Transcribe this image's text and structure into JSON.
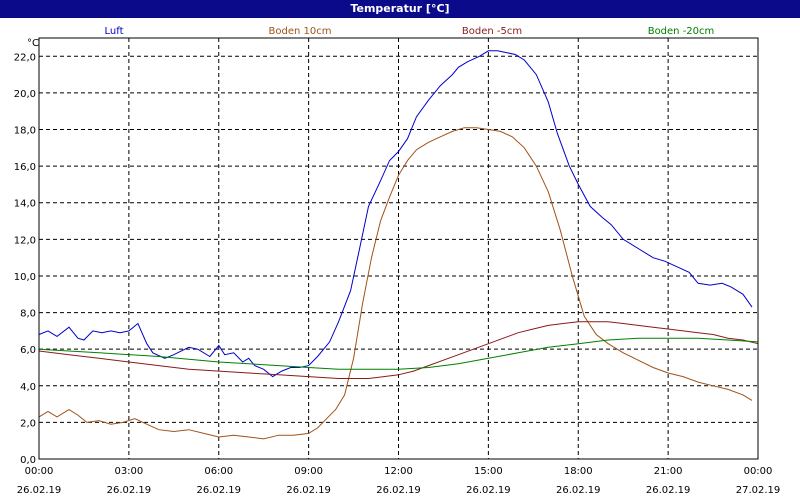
{
  "window": {
    "title": "Temperatur [°C]"
  },
  "chart_data": {
    "type": "line",
    "title": "Temperatur [°C]",
    "ylabel": "°C",
    "ylim": [
      0,
      23
    ],
    "xlim_hours": [
      0,
      24
    ],
    "grid": true,
    "legend_placement": "top",
    "x_ticks": [
      {
        "time": "00:00",
        "date": "26.02.19"
      },
      {
        "time": "03:00",
        "date": "26.02.19"
      },
      {
        "time": "06:00",
        "date": "26.02.19"
      },
      {
        "time": "09:00",
        "date": "26.02.19"
      },
      {
        "time": "12:00",
        "date": "26.02.19"
      },
      {
        "time": "15:00",
        "date": "26.02.19"
      },
      {
        "time": "18:00",
        "date": "26.02.19"
      },
      {
        "time": "21:00",
        "date": "26.02.19"
      },
      {
        "time": "00:00",
        "date": "27.02.19"
      }
    ],
    "y_ticks": [
      "0,0",
      "2,0",
      "4,0",
      "6,0",
      "8,0",
      "10,0",
      "12,0",
      "14,0",
      "16,0",
      "18,0",
      "20,0",
      "22,0"
    ],
    "series": [
      {
        "name": "Luft",
        "color": "#0000cc",
        "x_hours": [
          0,
          0.3,
          0.6,
          1.0,
          1.3,
          1.5,
          1.8,
          2.1,
          2.4,
          2.7,
          3.0,
          3.3,
          3.6,
          3.8,
          4.2,
          4.5,
          5.0,
          5.3,
          5.7,
          6.0,
          6.2,
          6.5,
          6.8,
          7.0,
          7.2,
          7.5,
          7.8,
          8.1,
          8.4,
          8.7,
          9.0,
          9.3,
          9.7,
          10.0,
          10.4,
          10.7,
          11.0,
          11.4,
          11.7,
          12.0,
          12.3,
          12.6,
          13.0,
          13.4,
          13.8,
          14.0,
          14.3,
          14.7,
          15.0,
          15.3,
          15.6,
          15.9,
          16.2,
          16.6,
          17.0,
          17.3,
          17.7,
          18.0,
          18.4,
          18.8,
          19.1,
          19.5,
          20.0,
          20.5,
          20.9,
          21.3,
          21.7,
          22.0,
          22.4,
          22.8,
          23.1,
          23.5,
          23.8
        ],
        "values": [
          6.8,
          7.0,
          6.7,
          7.2,
          6.6,
          6.5,
          7.0,
          6.9,
          7.0,
          6.9,
          7.0,
          7.4,
          6.3,
          5.8,
          5.5,
          5.7,
          6.1,
          6.0,
          5.6,
          6.2,
          5.7,
          5.8,
          5.3,
          5.5,
          5.1,
          4.9,
          4.5,
          4.8,
          5.0,
          5.0,
          5.1,
          5.6,
          6.4,
          7.5,
          9.2,
          11.5,
          13.8,
          15.2,
          16.3,
          16.8,
          17.5,
          18.7,
          19.6,
          20.4,
          21.0,
          21.4,
          21.7,
          22.0,
          22.3,
          22.3,
          22.2,
          22.1,
          21.8,
          21.0,
          19.5,
          17.8,
          16.0,
          15.0,
          13.8,
          13.2,
          12.8,
          12.0,
          11.5,
          11.0,
          10.8,
          10.5,
          10.2,
          9.6,
          9.5,
          9.6,
          9.4,
          9.0,
          8.3
        ]
      },
      {
        "name": "Boden 10cm",
        "color": "#a0521a",
        "x_hours": [
          0,
          0.3,
          0.6,
          1.0,
          1.3,
          1.6,
          2.0,
          2.4,
          2.8,
          3.2,
          3.6,
          4.0,
          4.5,
          5.0,
          5.5,
          6.0,
          6.5,
          7.0,
          7.5,
          8.0,
          8.5,
          9.0,
          9.3,
          9.6,
          9.9,
          10.2,
          10.5,
          10.8,
          11.1,
          11.4,
          11.7,
          12.0,
          12.3,
          12.6,
          13.0,
          13.4,
          13.8,
          14.2,
          14.6,
          15.0,
          15.4,
          15.8,
          16.2,
          16.6,
          17.0,
          17.4,
          17.8,
          18.2,
          18.6,
          19.0,
          19.5,
          20.0,
          20.5,
          21.0,
          21.5,
          22.0,
          22.5,
          23.0,
          23.5,
          23.8
        ],
        "values": [
          2.3,
          2.6,
          2.3,
          2.7,
          2.4,
          2.0,
          2.1,
          1.9,
          2.0,
          2.2,
          1.9,
          1.6,
          1.5,
          1.6,
          1.4,
          1.2,
          1.3,
          1.2,
          1.1,
          1.3,
          1.3,
          1.4,
          1.7,
          2.2,
          2.7,
          3.5,
          5.5,
          8.5,
          11.0,
          13.0,
          14.3,
          15.5,
          16.3,
          16.9,
          17.3,
          17.6,
          17.9,
          18.1,
          18.1,
          18.0,
          17.9,
          17.6,
          17.0,
          16.0,
          14.6,
          12.5,
          10.0,
          7.8,
          6.8,
          6.3,
          5.8,
          5.4,
          5.0,
          4.7,
          4.5,
          4.2,
          4.0,
          3.8,
          3.5,
          3.2
        ]
      },
      {
        "name": "Boden -5cm",
        "color": "#8b1a1a",
        "x_hours": [
          0,
          1,
          2,
          3,
          4,
          5,
          6,
          7,
          8,
          9,
          10,
          11,
          12,
          12.5,
          13,
          13.5,
          14,
          14.5,
          15,
          15.5,
          16,
          16.5,
          17,
          17.5,
          18,
          18.5,
          19,
          19.5,
          20,
          20.5,
          21,
          21.5,
          22,
          22.5,
          23,
          23.5,
          24
        ],
        "values": [
          5.9,
          5.7,
          5.5,
          5.3,
          5.1,
          4.9,
          4.8,
          4.7,
          4.6,
          4.5,
          4.4,
          4.4,
          4.6,
          4.8,
          5.1,
          5.4,
          5.7,
          6.0,
          6.3,
          6.6,
          6.9,
          7.1,
          7.3,
          7.4,
          7.5,
          7.5,
          7.5,
          7.4,
          7.3,
          7.2,
          7.1,
          7.0,
          6.9,
          6.8,
          6.6,
          6.5,
          6.3
        ]
      },
      {
        "name": "Boden -20cm",
        "color": "#008000",
        "x_hours": [
          0,
          2,
          4,
          6,
          8,
          9,
          10,
          11,
          12,
          13,
          14,
          15,
          16,
          17,
          18,
          19,
          20,
          21,
          22,
          23,
          24
        ],
        "values": [
          6.0,
          5.8,
          5.6,
          5.3,
          5.1,
          5.0,
          4.9,
          4.9,
          4.9,
          5.0,
          5.2,
          5.5,
          5.8,
          6.1,
          6.3,
          6.5,
          6.6,
          6.6,
          6.6,
          6.5,
          6.4
        ]
      }
    ]
  }
}
